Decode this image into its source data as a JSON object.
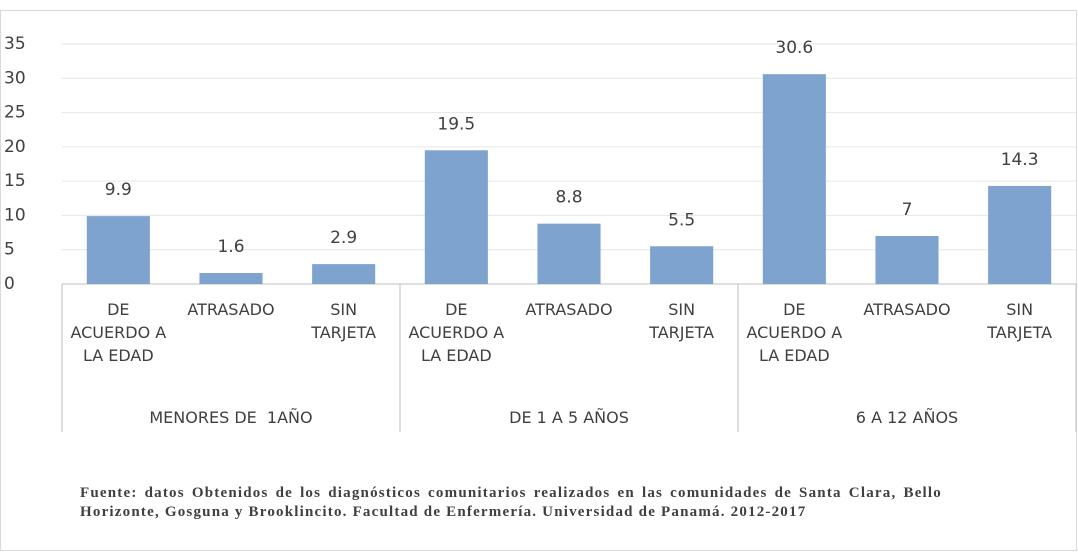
{
  "chart_data": {
    "type": "bar",
    "categories": [
      "DE ACUERDO A LA EDAD",
      "ATRASADO",
      "SIN TARJETA",
      "DE ACUERDO A LA EDAD",
      "ATRASADO",
      "SIN TARJETA",
      "DE ACUERDO A LA EDAD",
      "ATRASADO",
      "SIN TARJETA"
    ],
    "groups": [
      "MENORES DE  1AÑO",
      "DE 1 A 5 AÑOS",
      "6 A 12 AÑOS"
    ],
    "values": [
      9.9,
      1.6,
      2.9,
      19.5,
      8.8,
      5.5,
      30.6,
      7,
      14.3
    ],
    "color": "#7ea3cf",
    "ylim": [
      0,
      35
    ],
    "yticks": [
      0,
      5,
      10,
      15,
      20,
      25,
      30,
      35
    ],
    "grid": true,
    "source": "Fuente: datos Obtenidos de los diagnósticos comunitarios realizados en las comunidades de Santa Clara, Bello Horizonte, Gosguna y Brooklincito. Facultad de Enfermería. Universidad de Panamá. 2012-2017"
  }
}
